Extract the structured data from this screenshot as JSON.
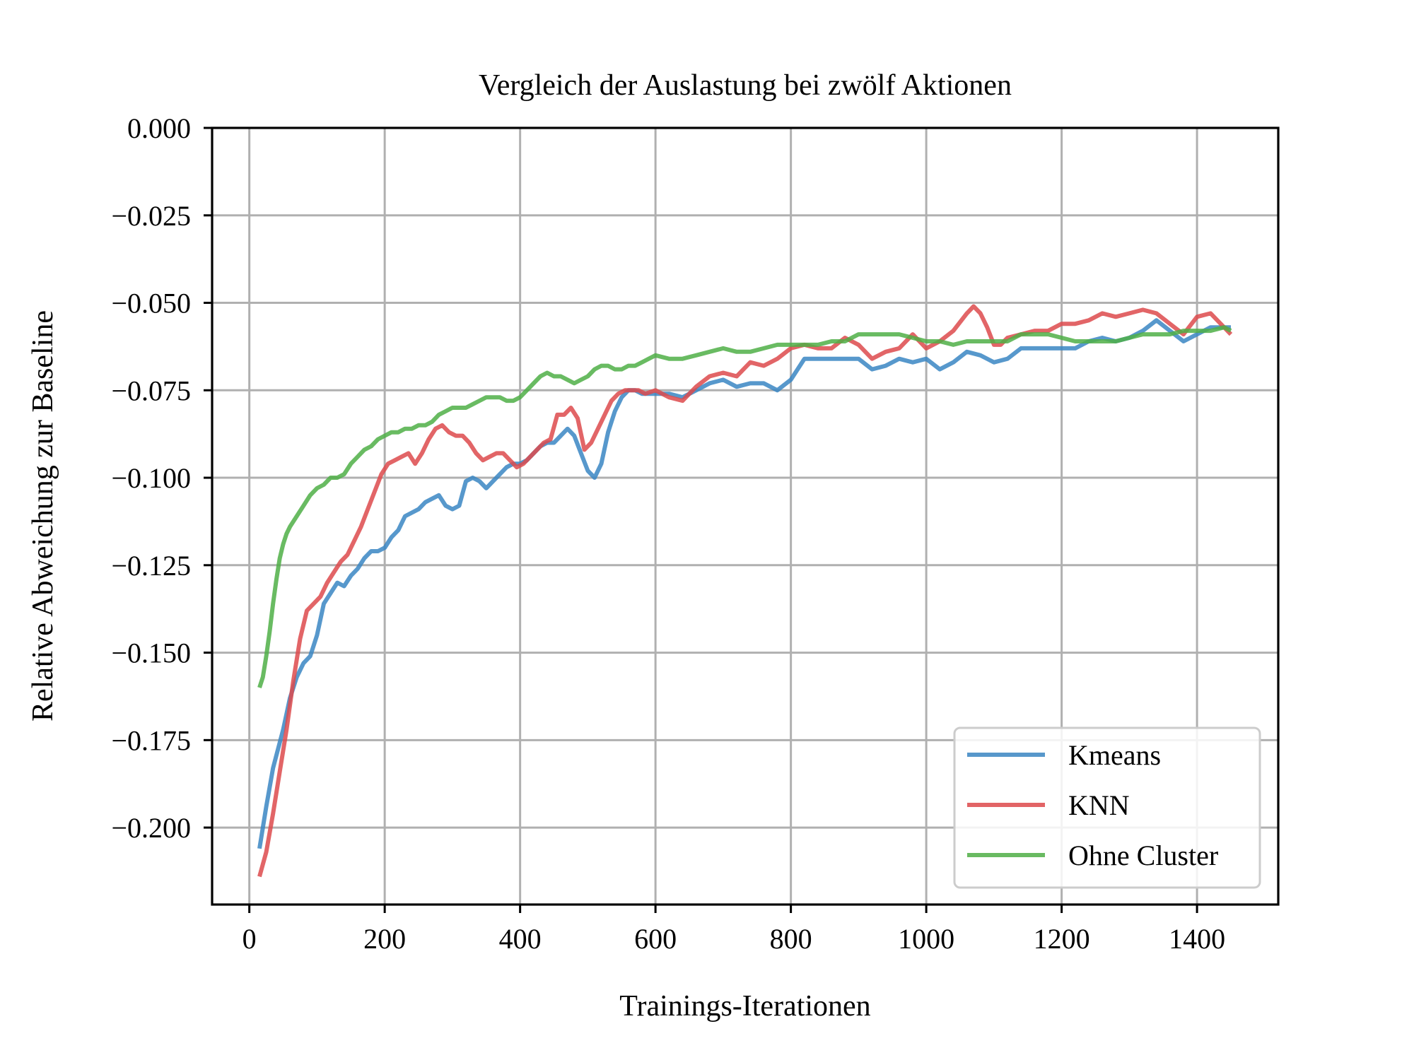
{
  "chart_data": {
    "type": "line",
    "title": "Vergleich der Auslastung bei zwölf Aktionen",
    "xlabel": "Trainings-Iterationen",
    "ylabel": "Relative Abweichung zur Baseline",
    "xlim": [
      -55,
      1520
    ],
    "ylim": [
      -0.222,
      0.0
    ],
    "xticks": [
      0,
      200,
      400,
      600,
      800,
      1000,
      1200,
      1400
    ],
    "xtick_labels": [
      "0",
      "200",
      "400",
      "600",
      "800",
      "1000",
      "1200",
      "1400"
    ],
    "yticks": [
      0.0,
      -0.025,
      -0.05,
      -0.075,
      -0.1,
      -0.125,
      -0.15,
      -0.175,
      -0.2
    ],
    "ytick_labels": [
      "0.000",
      "−0.025",
      "−0.050",
      "−0.075",
      "−0.100",
      "−0.125",
      "−0.150",
      "−0.175",
      "−0.200"
    ],
    "grid": true,
    "legend_position": "lower-right",
    "series": [
      {
        "name": "Kmeans",
        "color": "#3a86c3",
        "x": [
          15,
          25,
          35,
          50,
          60,
          70,
          80,
          90,
          100,
          110,
          120,
          130,
          140,
          150,
          160,
          170,
          180,
          190,
          200,
          210,
          220,
          230,
          240,
          250,
          260,
          270,
          280,
          290,
          300,
          310,
          320,
          330,
          340,
          350,
          360,
          370,
          380,
          390,
          400,
          410,
          420,
          430,
          440,
          450,
          460,
          470,
          480,
          490,
          500,
          510,
          520,
          530,
          540,
          550,
          560,
          570,
          580,
          590,
          600,
          620,
          640,
          660,
          680,
          700,
          720,
          740,
          760,
          780,
          800,
          820,
          840,
          860,
          880,
          900,
          920,
          940,
          960,
          980,
          1000,
          1020,
          1040,
          1060,
          1080,
          1100,
          1120,
          1140,
          1160,
          1180,
          1200,
          1220,
          1240,
          1260,
          1280,
          1300,
          1320,
          1340,
          1360,
          1380,
          1400,
          1420,
          1440,
          1450
        ],
        "values": [
          -0.206,
          -0.194,
          -0.183,
          -0.172,
          -0.163,
          -0.157,
          -0.153,
          -0.151,
          -0.145,
          -0.136,
          -0.133,
          -0.13,
          -0.131,
          -0.128,
          -0.126,
          -0.123,
          -0.121,
          -0.121,
          -0.12,
          -0.117,
          -0.115,
          -0.111,
          -0.11,
          -0.109,
          -0.107,
          -0.106,
          -0.105,
          -0.108,
          -0.109,
          -0.108,
          -0.101,
          -0.1,
          -0.101,
          -0.103,
          -0.101,
          -0.099,
          -0.097,
          -0.096,
          -0.096,
          -0.095,
          -0.093,
          -0.091,
          -0.09,
          -0.09,
          -0.088,
          -0.086,
          -0.088,
          -0.093,
          -0.098,
          -0.1,
          -0.096,
          -0.087,
          -0.081,
          -0.077,
          -0.075,
          -0.075,
          -0.076,
          -0.076,
          -0.076,
          -0.076,
          -0.077,
          -0.075,
          -0.073,
          -0.072,
          -0.074,
          -0.073,
          -0.073,
          -0.075,
          -0.072,
          -0.066,
          -0.066,
          -0.066,
          -0.066,
          -0.066,
          -0.069,
          -0.068,
          -0.066,
          -0.067,
          -0.066,
          -0.069,
          -0.067,
          -0.064,
          -0.065,
          -0.067,
          -0.066,
          -0.063,
          -0.063,
          -0.063,
          -0.063,
          -0.063,
          -0.061,
          -0.06,
          -0.061,
          -0.06,
          -0.058,
          -0.055,
          -0.058,
          -0.061,
          -0.059,
          -0.057,
          -0.057,
          -0.057
        ]
      },
      {
        "name": "KNN",
        "color": "#dd4a4c",
        "x": [
          15,
          25,
          35,
          45,
          55,
          65,
          75,
          85,
          95,
          105,
          115,
          125,
          135,
          145,
          155,
          165,
          175,
          185,
          195,
          205,
          215,
          225,
          235,
          245,
          255,
          265,
          275,
          285,
          295,
          305,
          315,
          325,
          335,
          345,
          355,
          365,
          375,
          385,
          395,
          405,
          415,
          425,
          435,
          445,
          455,
          465,
          475,
          485,
          495,
          505,
          515,
          525,
          535,
          545,
          555,
          565,
          575,
          585,
          600,
          620,
          640,
          660,
          680,
          700,
          720,
          740,
          760,
          780,
          800,
          820,
          840,
          860,
          880,
          900,
          920,
          940,
          960,
          980,
          1000,
          1020,
          1040,
          1060,
          1070,
          1080,
          1090,
          1100,
          1110,
          1120,
          1140,
          1160,
          1180,
          1200,
          1220,
          1240,
          1260,
          1280,
          1300,
          1320,
          1340,
          1360,
          1380,
          1400,
          1420,
          1440,
          1450
        ],
        "values": [
          -0.214,
          -0.207,
          -0.196,
          -0.184,
          -0.172,
          -0.158,
          -0.146,
          -0.138,
          -0.136,
          -0.134,
          -0.13,
          -0.127,
          -0.124,
          -0.122,
          -0.118,
          -0.114,
          -0.109,
          -0.104,
          -0.099,
          -0.096,
          -0.095,
          -0.094,
          -0.093,
          -0.096,
          -0.093,
          -0.089,
          -0.086,
          -0.085,
          -0.087,
          -0.088,
          -0.088,
          -0.09,
          -0.093,
          -0.095,
          -0.094,
          -0.093,
          -0.093,
          -0.095,
          -0.097,
          -0.096,
          -0.094,
          -0.092,
          -0.09,
          -0.089,
          -0.082,
          -0.082,
          -0.08,
          -0.083,
          -0.092,
          -0.09,
          -0.086,
          -0.082,
          -0.078,
          -0.076,
          -0.075,
          -0.075,
          -0.075,
          -0.076,
          -0.075,
          -0.077,
          -0.078,
          -0.074,
          -0.071,
          -0.07,
          -0.071,
          -0.067,
          -0.068,
          -0.066,
          -0.063,
          -0.062,
          -0.063,
          -0.063,
          -0.06,
          -0.062,
          -0.066,
          -0.064,
          -0.063,
          -0.059,
          -0.063,
          -0.061,
          -0.058,
          -0.053,
          -0.051,
          -0.053,
          -0.057,
          -0.062,
          -0.062,
          -0.06,
          -0.059,
          -0.058,
          -0.058,
          -0.056,
          -0.056,
          -0.055,
          -0.053,
          -0.054,
          -0.053,
          -0.052,
          -0.053,
          -0.056,
          -0.059,
          -0.054,
          -0.053,
          -0.057,
          -0.059
        ]
      },
      {
        "name": "Ohne Cluster",
        "color": "#4faf46",
        "x": [
          15,
          20,
          25,
          30,
          35,
          40,
          45,
          50,
          55,
          60,
          70,
          80,
          90,
          100,
          110,
          120,
          130,
          140,
          150,
          160,
          170,
          180,
          190,
          200,
          210,
          220,
          230,
          240,
          250,
          260,
          270,
          280,
          290,
          300,
          310,
          320,
          330,
          340,
          350,
          360,
          370,
          380,
          390,
          400,
          410,
          420,
          430,
          440,
          450,
          460,
          470,
          480,
          490,
          500,
          510,
          520,
          530,
          540,
          550,
          560,
          570,
          580,
          590,
          600,
          620,
          640,
          660,
          680,
          700,
          720,
          740,
          760,
          780,
          800,
          820,
          840,
          860,
          880,
          900,
          920,
          940,
          960,
          980,
          1000,
          1020,
          1040,
          1060,
          1080,
          1100,
          1120,
          1140,
          1160,
          1180,
          1200,
          1220,
          1240,
          1260,
          1280,
          1300,
          1320,
          1340,
          1360,
          1380,
          1400,
          1420,
          1440,
          1450
        ],
        "values": [
          -0.16,
          -0.157,
          -0.151,
          -0.144,
          -0.136,
          -0.129,
          -0.123,
          -0.119,
          -0.116,
          -0.114,
          -0.111,
          -0.108,
          -0.105,
          -0.103,
          -0.102,
          -0.1,
          -0.1,
          -0.099,
          -0.096,
          -0.094,
          -0.092,
          -0.091,
          -0.089,
          -0.088,
          -0.087,
          -0.087,
          -0.086,
          -0.086,
          -0.085,
          -0.085,
          -0.084,
          -0.082,
          -0.081,
          -0.08,
          -0.08,
          -0.08,
          -0.079,
          -0.078,
          -0.077,
          -0.077,
          -0.077,
          -0.078,
          -0.078,
          -0.077,
          -0.075,
          -0.073,
          -0.071,
          -0.07,
          -0.071,
          -0.071,
          -0.072,
          -0.073,
          -0.072,
          -0.071,
          -0.069,
          -0.068,
          -0.068,
          -0.069,
          -0.069,
          -0.068,
          -0.068,
          -0.067,
          -0.066,
          -0.065,
          -0.066,
          -0.066,
          -0.065,
          -0.064,
          -0.063,
          -0.064,
          -0.064,
          -0.063,
          -0.062,
          -0.062,
          -0.062,
          -0.062,
          -0.061,
          -0.061,
          -0.059,
          -0.059,
          -0.059,
          -0.059,
          -0.06,
          -0.061,
          -0.061,
          -0.062,
          -0.061,
          -0.061,
          -0.061,
          -0.061,
          -0.059,
          -0.059,
          -0.059,
          -0.06,
          -0.061,
          -0.061,
          -0.061,
          -0.061,
          -0.06,
          -0.059,
          -0.059,
          -0.059,
          -0.058,
          -0.058,
          -0.058,
          -0.057,
          -0.058
        ]
      }
    ]
  }
}
